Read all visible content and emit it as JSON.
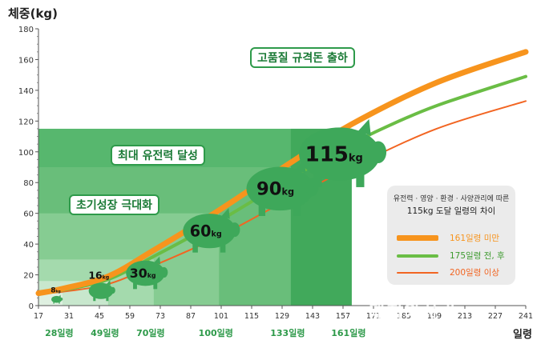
{
  "chart_data": {
    "type": "line",
    "ylabel": "체중(kg)",
    "xlabel": "일령",
    "ylim": [
      0,
      180
    ],
    "xlim": [
      17,
      241
    ],
    "yticks": [
      0,
      20,
      40,
      60,
      80,
      100,
      120,
      140,
      160,
      180
    ],
    "xticks": [
      17,
      31,
      45,
      59,
      73,
      87,
      101,
      115,
      129,
      143,
      157,
      171,
      185,
      199,
      213,
      227,
      241
    ],
    "series": [
      {
        "name": "161일령 미만",
        "color": "#f7941d",
        "x": [
          17,
          28,
          49,
          70,
          100,
          133,
          161,
          200,
          241
        ],
        "y": [
          8,
          11,
          19,
          36,
          62,
          93,
          118,
          145,
          165
        ]
      },
      {
        "name": "175일령 전, 후",
        "color": "#6abd45",
        "x": [
          17,
          28,
          49,
          70,
          100,
          133,
          161,
          175,
          200,
          241
        ],
        "y": [
          8,
          10,
          17,
          32,
          55,
          83,
          105,
          115,
          130,
          149
        ]
      },
      {
        "name": "200일령 이상",
        "color": "#f26522",
        "x": [
          17,
          28,
          49,
          70,
          100,
          133,
          161,
          200,
          241
        ],
        "y": [
          8,
          9,
          14,
          26,
          45,
          70,
          90,
          115,
          133
        ]
      }
    ],
    "stage_bands": [
      {
        "label": "28일령",
        "x0": 17,
        "x1": 28,
        "weight": 8,
        "weight_label": "8",
        "unit": "kg"
      },
      {
        "label": "49일령",
        "x0": 17,
        "x1": 49,
        "weight": 16,
        "weight_label": "16",
        "unit": "kg"
      },
      {
        "label": "70일령",
        "x0": 17,
        "x1": 70,
        "weight": 30,
        "weight_label": "30",
        "unit": "kg"
      },
      {
        "label": "100일령",
        "x0": 17,
        "x1": 100,
        "weight": 60,
        "weight_label": "60",
        "unit": "kg"
      },
      {
        "label": "133일령",
        "x0": 17,
        "x1": 133,
        "weight": 90,
        "weight_label": "90",
        "unit": "kg"
      },
      {
        "label": "161일령",
        "x0": 17,
        "x1": 161,
        "weight": 115,
        "weight_label": "115",
        "unit": "kg"
      }
    ],
    "annotations": {
      "growth": "초기성장 극대화",
      "potential": "최대 유전력 달성",
      "ship": "고품질 규격돈 출하"
    },
    "legend": {
      "title": "유전력 · 영양 · 환경 · 사양관리에 따른",
      "subtitle": "115kg 도달 일령의 차이",
      "placement": "bottom-right"
    },
    "grid": false
  },
  "colors": {
    "band_dark": "#3aaa55",
    "band_light": "#bfe3c4",
    "pig": "#3ea85a",
    "callout_border": "#2e9a4a",
    "axis": "#555555"
  },
  "watermark": "돼지와사람"
}
